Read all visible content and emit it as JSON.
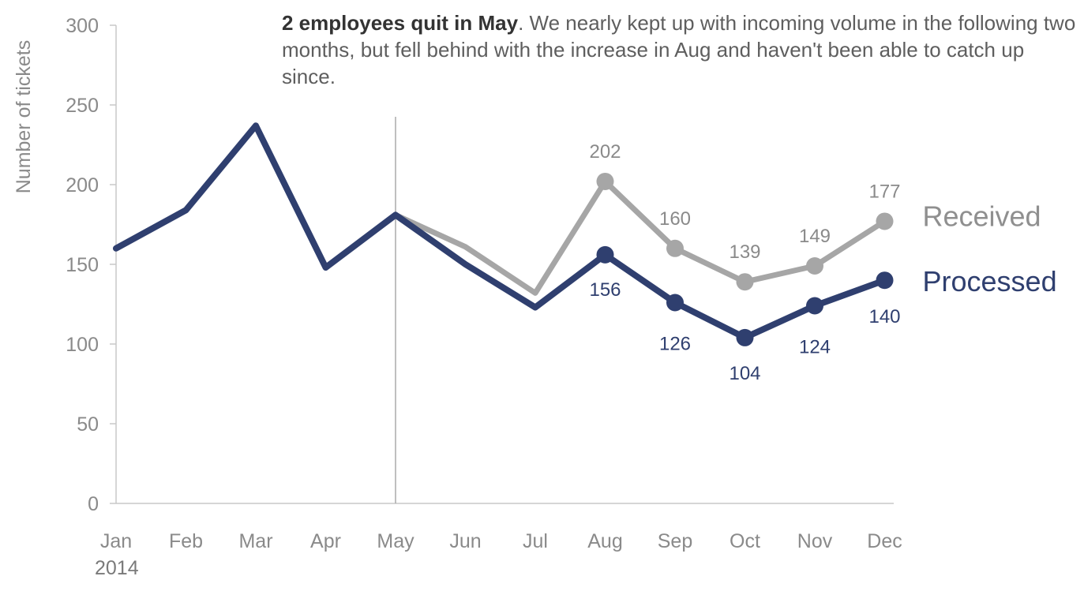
{
  "chart_data": {
    "type": "line",
    "categories": [
      "Jan",
      "Feb",
      "Mar",
      "Apr",
      "May",
      "Jun",
      "Jul",
      "Aug",
      "Sep",
      "Oct",
      "Nov",
      "Dec"
    ],
    "x_year_label": "2014",
    "ylabel": "Number of tickets",
    "ylim": [
      0,
      300
    ],
    "yticks": [
      "0",
      "50",
      "100",
      "150",
      "200",
      "250",
      "300"
    ],
    "grid": false,
    "annotation": {
      "bold": "2 employees quit in May",
      "text": ". We nearly kept up with incoming volume in the following two months, but fell behind with the increase in Aug and haven't been able to catch up since."
    },
    "marker_line_category": "May",
    "series": [
      {
        "name": "Received",
        "color": "#a6a6a6",
        "values": [
          160,
          184,
          237,
          148,
          181,
          161,
          132,
          202,
          160,
          139,
          149,
          177
        ],
        "labels": [
          "",
          "",
          "",
          "",
          "",
          "",
          "",
          "202",
          "160",
          "139",
          "149",
          "177"
        ]
      },
      {
        "name": "Processed",
        "color": "#2f3f6f",
        "values": [
          160,
          184,
          237,
          148,
          181,
          150,
          123,
          156,
          126,
          104,
          124,
          140
        ],
        "labels": [
          "",
          "",
          "",
          "",
          "",
          "",
          "",
          "156",
          "126",
          "104",
          "124",
          "140"
        ]
      }
    ]
  }
}
